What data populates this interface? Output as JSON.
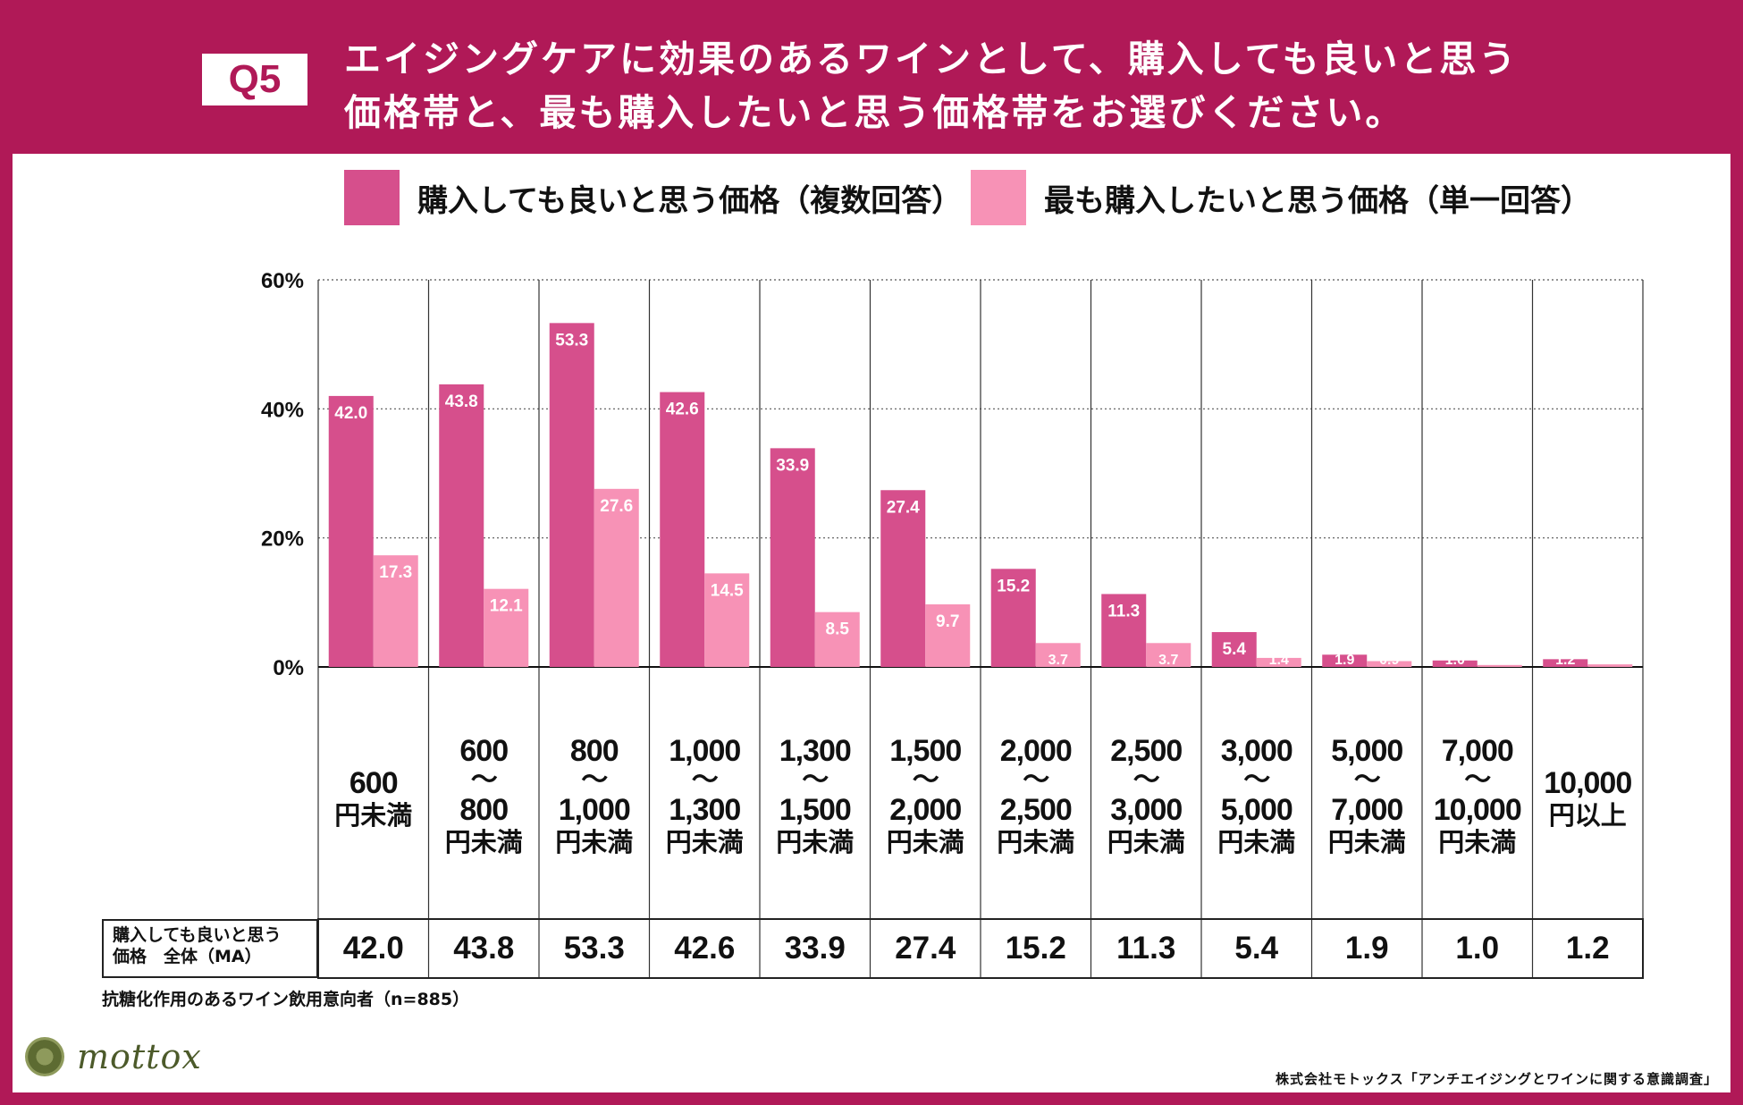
{
  "header": {
    "badge": "Q5",
    "title_line1": "エイジングケアに効果のあるワインとして、購入しても良いと思う",
    "title_line2": "価格帯と、最も購入したいと思う価格帯をお選びください。"
  },
  "colors": {
    "frame": "#b01957",
    "series1": "#d64f8c",
    "series2": "#f792b6"
  },
  "chart_data": {
    "type": "bar",
    "title": "",
    "ylabel": "",
    "ylim": [
      0,
      60
    ],
    "yticks": [
      "0%",
      "20%",
      "40%",
      "60%"
    ],
    "categories": [
      {
        "line1": "600",
        "line2": "",
        "line3": "円未満"
      },
      {
        "line1": "600",
        "line2": "〜",
        "line3": "800",
        "line4": "円未満"
      },
      {
        "line1": "800",
        "line2": "〜",
        "line3": "1,000",
        "line4": "円未満"
      },
      {
        "line1": "1,000",
        "line2": "〜",
        "line3": "1,300",
        "line4": "円未満"
      },
      {
        "line1": "1,300",
        "line2": "〜",
        "line3": "1,500",
        "line4": "円未満"
      },
      {
        "line1": "1,500",
        "line2": "〜",
        "line3": "2,000",
        "line4": "円未満"
      },
      {
        "line1": "2,000",
        "line2": "〜",
        "line3": "2,500",
        "line4": "円未満"
      },
      {
        "line1": "2,500",
        "line2": "〜",
        "line3": "3,000",
        "line4": "円未満"
      },
      {
        "line1": "3,000",
        "line2": "〜",
        "line3": "5,000",
        "line4": "円未満"
      },
      {
        "line1": "5,000",
        "line2": "〜",
        "line3": "7,000",
        "line4": "円未満"
      },
      {
        "line1": "7,000",
        "line2": "〜",
        "line3": "10,000",
        "line4": "円未満"
      },
      {
        "line1": "10,000",
        "line2": "",
        "line3": "円以上"
      }
    ],
    "series": [
      {
        "name": "購入しても良いと思う価格（複数回答）",
        "values": [
          42.0,
          43.8,
          53.3,
          42.6,
          33.9,
          27.4,
          15.2,
          11.3,
          5.4,
          1.9,
          1.0,
          1.2
        ]
      },
      {
        "name": "最も購入したいと思う価格（単一回答）",
        "values": [
          17.3,
          12.1,
          27.6,
          14.5,
          8.5,
          9.7,
          3.7,
          3.7,
          1.4,
          0.9,
          0.3,
          0.4
        ]
      }
    ],
    "legend_position": "top"
  },
  "table": {
    "header_line1": "購入しても良いと思う",
    "header_line2": "価格　全体（MA）",
    "values": [
      "42.0",
      "43.8",
      "53.3",
      "42.6",
      "33.9",
      "27.4",
      "15.2",
      "11.3",
      "5.4",
      "1.9",
      "1.0",
      "1.2"
    ]
  },
  "footnote": "抗糖化作用のあるワイン飲用意向者（n=885）",
  "logo": {
    "text": "mottox"
  },
  "source": "株式会社モトックス「アンチエイジングとワインに関する意識調査」"
}
